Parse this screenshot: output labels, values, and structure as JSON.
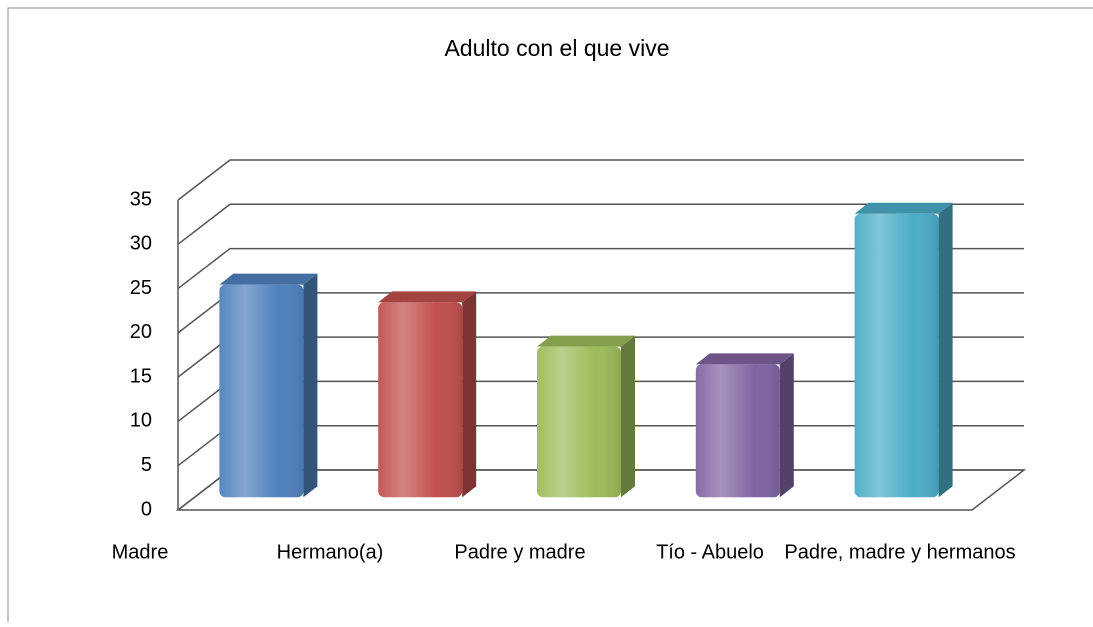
{
  "chart_data": {
    "type": "bar3d",
    "title": "Adulto con el que vive",
    "categories": [
      "Madre",
      "Hermano(a)",
      "Padre y madre",
      "Tío - Abuelo",
      "Padre, madre y hermanos"
    ],
    "values": [
      24,
      22,
      17,
      15,
      32
    ],
    "colors": [
      "#4f81bd",
      "#c0504d",
      "#9bbb59",
      "#8064a2",
      "#4bacc6"
    ],
    "ylim": [
      0,
      35
    ],
    "yticks": [
      0,
      5,
      10,
      15,
      20,
      25,
      30,
      35
    ],
    "grid": true
  }
}
